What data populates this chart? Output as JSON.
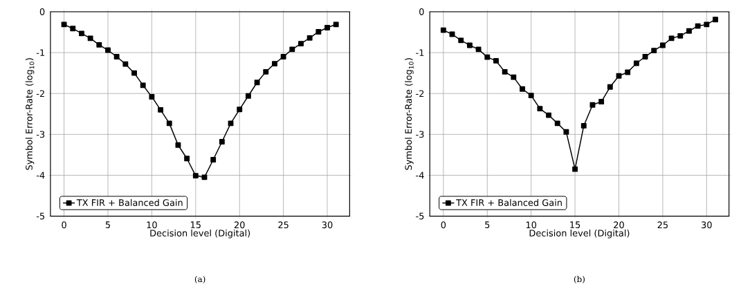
{
  "chart_data": [
    {
      "type": "line",
      "xlabel": "Decision level (Digital)",
      "ylabel": "Symbol Error-Rate (log$_{10}$)",
      "annotations": [
        "(a)"
      ],
      "x": [
        0,
        1,
        2,
        3,
        4,
        5,
        6,
        7,
        8,
        9,
        10,
        11,
        12,
        13,
        14,
        15,
        16,
        17,
        18,
        19,
        20,
        21,
        22,
        23,
        24,
        25,
        26,
        27,
        28,
        29,
        30,
        31
      ],
      "series": [
        {
          "name": "TX FIR + Balanced Gain",
          "color": "#000000",
          "values": [
            -0.31,
            -0.41,
            -0.53,
            -0.65,
            -0.81,
            -0.94,
            -1.1,
            -1.28,
            -1.5,
            -1.8,
            -2.08,
            -2.4,
            -2.73,
            -3.26,
            -3.59,
            -4.01,
            -4.05,
            -3.62,
            -3.18,
            -2.73,
            -2.39,
            -2.06,
            -1.73,
            -1.47,
            -1.27,
            -1.1,
            -0.92,
            -0.78,
            -0.64,
            -0.49,
            -0.39,
            -0.31
          ]
        }
      ],
      "xlim": [
        -1.55,
        32.55
      ],
      "ylim": [
        -5,
        0
      ],
      "xticks": [
        0,
        5,
        10,
        15,
        20,
        25,
        30
      ],
      "yticks": [
        -5,
        -4,
        -3,
        -2,
        -1,
        0
      ],
      "grid": true,
      "legend": "bottom left",
      "marker": "square",
      "line_style": "solid"
    },
    {
      "type": "line",
      "xlabel": "Decision level (Digital)",
      "ylabel": "Symbol Error-Rate (log$_{10}$)",
      "annotations": [
        "(b)"
      ],
      "x": [
        0,
        1,
        2,
        3,
        4,
        5,
        6,
        7,
        8,
        9,
        10,
        11,
        12,
        13,
        14,
        15,
        16,
        17,
        18,
        19,
        20,
        21,
        22,
        23,
        24,
        25,
        26,
        27,
        28,
        29,
        30,
        31
      ],
      "series": [
        {
          "name": "TX FIR + Balanced Gain",
          "color": "#000000",
          "values": [
            -0.45,
            -0.55,
            -0.7,
            -0.82,
            -0.92,
            -1.11,
            -1.2,
            -1.47,
            -1.6,
            -1.89,
            -2.05,
            -2.37,
            -2.53,
            -2.73,
            -2.94,
            -3.85,
            -2.79,
            -2.28,
            -2.2,
            -1.84,
            -1.57,
            -1.48,
            -1.26,
            -1.1,
            -0.95,
            -0.82,
            -0.65,
            -0.59,
            -0.47,
            -0.35,
            -0.31,
            -0.19
          ]
        }
      ],
      "xlim": [
        -1.55,
        32.55
      ],
      "ylim": [
        -5,
        0
      ],
      "xticks": [
        0,
        5,
        10,
        15,
        20,
        25,
        30
      ],
      "yticks": [
        -5,
        -4,
        -3,
        -2,
        -1,
        0
      ],
      "grid": true,
      "legend": "bottom left",
      "marker": "square",
      "line_style": "solid"
    }
  ]
}
